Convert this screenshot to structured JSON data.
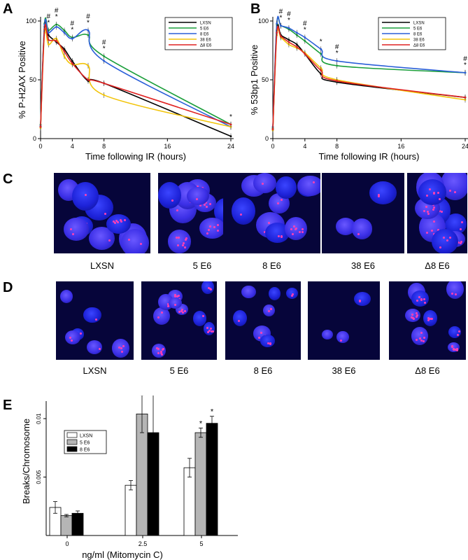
{
  "panels": {
    "A": "A",
    "B": "B",
    "C": "C",
    "D": "D",
    "E": "E"
  },
  "chart_data": [
    {
      "id": "A",
      "type": "line",
      "xlabel": "Time following IR (hours)",
      "ylabel": "% P-H2AX Positive",
      "xlim": [
        0,
        24
      ],
      "ylim": [
        0,
        100
      ],
      "xticks": [
        0,
        4,
        8,
        16,
        24
      ],
      "yticks": [
        0,
        50,
        100
      ],
      "legend_position": "top-right",
      "series": [
        {
          "name": "LXSN",
          "color": "#000000",
          "x": [
            0,
            0.5,
            1,
            2,
            3,
            4,
            6,
            8,
            24
          ],
          "y": [
            10,
            95,
            88,
            82,
            76,
            66,
            49,
            47,
            2
          ]
        },
        {
          "name": "5 E6",
          "color": "#1a9e3a",
          "x": [
            0,
            0.5,
            1,
            2,
            3,
            4,
            6,
            8,
            24
          ],
          "y": [
            12,
            98,
            92,
            97,
            92,
            86,
            88,
            70,
            12
          ]
        },
        {
          "name": "8 E6",
          "color": "#2a5fd8",
          "x": [
            0,
            0.5,
            1,
            2,
            3,
            4,
            6,
            8,
            24
          ],
          "y": [
            11,
            97,
            90,
            95,
            90,
            85,
            92,
            66,
            10
          ]
        },
        {
          "name": "38 E6",
          "color": "#f2c40a",
          "x": [
            0,
            0.5,
            1,
            2,
            3,
            4,
            6,
            8,
            24
          ],
          "y": [
            9,
            90,
            80,
            85,
            70,
            63,
            62,
            37,
            10
          ]
        },
        {
          "name": "Δ8 E6",
          "color": "#e02222",
          "x": [
            0,
            0.5,
            1,
            2,
            3,
            4,
            6,
            8,
            24
          ],
          "y": [
            10,
            93,
            84,
            83,
            74,
            64,
            50,
            47,
            12
          ]
        }
      ],
      "annotations": [
        {
          "x": 1,
          "text": "#"
        },
        {
          "x": 1,
          "text": "*"
        },
        {
          "x": 2,
          "text": "#"
        },
        {
          "x": 2,
          "text": "*"
        },
        {
          "x": 4,
          "text": "#"
        },
        {
          "x": 4,
          "text": "*"
        },
        {
          "x": 6,
          "text": "#"
        },
        {
          "x": 6,
          "text": "*"
        },
        {
          "x": 8,
          "text": "#"
        },
        {
          "x": 8,
          "text": "*"
        },
        {
          "x": 24,
          "text": "*"
        }
      ]
    },
    {
      "id": "B",
      "type": "line",
      "xlabel": "Time following IR (hours)",
      "ylabel": "% 53bp1 Positive",
      "xlim": [
        0,
        24
      ],
      "ylim": [
        0,
        100
      ],
      "xticks": [
        0,
        4,
        8,
        16,
        24
      ],
      "yticks": [
        0,
        50,
        100
      ],
      "legend_position": "top-right",
      "series": [
        {
          "name": "LXSN",
          "color": "#000000",
          "x": [
            0,
            0.5,
            1,
            2,
            3,
            4,
            6,
            8,
            24
          ],
          "y": [
            8,
            92,
            88,
            84,
            80,
            72,
            55,
            48,
            35
          ]
        },
        {
          "name": "5 E6",
          "color": "#1a9e3a",
          "x": [
            0,
            0.5,
            1,
            2,
            3,
            4,
            6,
            8,
            24
          ],
          "y": [
            9,
            97,
            96,
            93,
            88,
            83,
            72,
            62,
            56
          ]
        },
        {
          "name": "8 E6",
          "color": "#2a5fd8",
          "x": [
            0,
            0.5,
            1,
            2,
            3,
            4,
            6,
            8,
            24
          ],
          "y": [
            10,
            98,
            96,
            94,
            90,
            86,
            76,
            66,
            56
          ]
        },
        {
          "name": "38 E6",
          "color": "#f2c40a",
          "x": [
            0,
            0.5,
            1,
            2,
            3,
            4,
            6,
            8,
            24
          ],
          "y": [
            7,
            88,
            86,
            80,
            77,
            73,
            60,
            50,
            33
          ]
        },
        {
          "name": "Δ8 E6",
          "color": "#e02222",
          "x": [
            0,
            0.5,
            1,
            2,
            3,
            4,
            6,
            8,
            24
          ],
          "y": [
            8,
            90,
            87,
            82,
            78,
            72,
            58,
            49,
            35
          ]
        }
      ],
      "annotations": [
        {
          "x": 1,
          "text": "#"
        },
        {
          "x": 1,
          "text": "*"
        },
        {
          "x": 2,
          "text": "#"
        },
        {
          "x": 2,
          "text": "*"
        },
        {
          "x": 4,
          "text": "#"
        },
        {
          "x": 4,
          "text": "*"
        },
        {
          "x": 6,
          "text": "*"
        },
        {
          "x": 8,
          "text": "#"
        },
        {
          "x": 8,
          "text": "*"
        },
        {
          "x": 24,
          "text": "#"
        },
        {
          "x": 24,
          "text": "*"
        }
      ]
    },
    {
      "id": "E",
      "type": "bar",
      "xlabel": "ng/ml (Mitomycin C)",
      "ylabel": "Breaks/Chromosome",
      "categories": [
        "0",
        "2.5",
        "5"
      ],
      "ylim": [
        0,
        0.0115
      ],
      "yticks": [
        0.005,
        0.01
      ],
      "ytick_labels": [
        "0.005",
        "0.01"
      ],
      "legend_position": "top-left",
      "series": [
        {
          "name": "LXSN",
          "color": "#ffffff",
          "values": [
            0.0024,
            0.0043,
            0.0058
          ],
          "errors": [
            0.0005,
            0.0004,
            0.0008
          ]
        },
        {
          "name": "5 E6",
          "color": "#b5b5b5",
          "values": [
            0.0017,
            0.0104,
            0.0088
          ],
          "errors": [
            0.0001,
            0.0016,
            0.0004
          ]
        },
        {
          "name": "8 E6",
          "color": "#000000",
          "values": [
            0.0019,
            0.0088,
            0.0096
          ],
          "errors": [
            0.0002,
            0.0047,
            0.0006
          ]
        }
      ],
      "annotations": [
        {
          "category": "2.5",
          "series": "5 E6",
          "text": "*"
        },
        {
          "category": "5",
          "series": "5 E6",
          "text": "*"
        },
        {
          "category": "5",
          "series": "8 E6",
          "text": "*"
        }
      ]
    }
  ],
  "micrographs_C": [
    {
      "label": "LXSN"
    },
    {
      "label": "5 E6"
    },
    {
      "label": "8 E6"
    },
    {
      "label": "38 E6"
    },
    {
      "label": "Δ8 E6"
    }
  ],
  "micrographs_D": [
    {
      "label": "LXSN"
    },
    {
      "label": "5 E6"
    },
    {
      "label": "8 E6"
    },
    {
      "label": "38 E6"
    },
    {
      "label": "Δ8 E6"
    }
  ]
}
